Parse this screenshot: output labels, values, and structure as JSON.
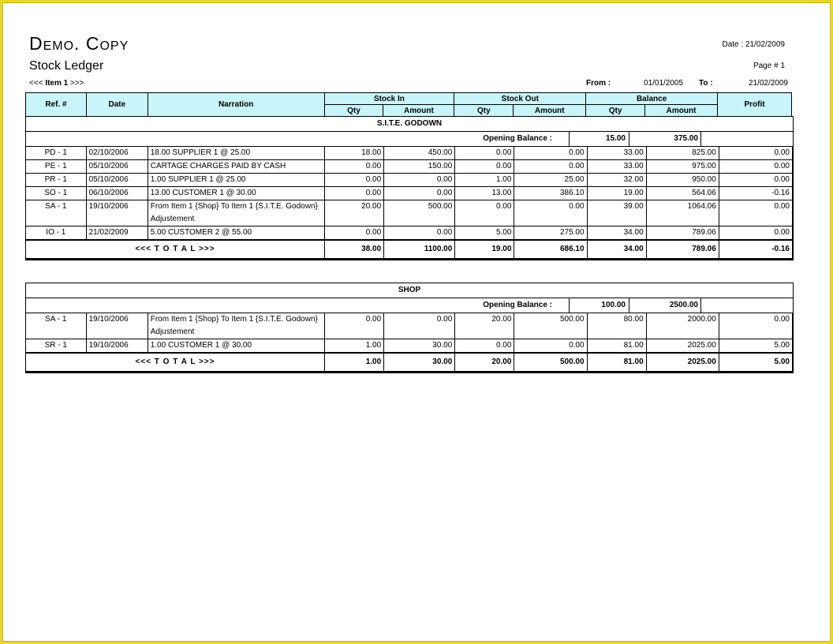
{
  "brand": "Demo. Copy",
  "title": "Stock Ledger",
  "item_label": "Item 1",
  "date_label": "Date :",
  "date_value": "21/02/2009",
  "page_label": "Page #",
  "page_value": "1",
  "from_label": "From :",
  "from_value": "01/01/2005",
  "to_label": "To :",
  "to_value": "21/02/2009",
  "headers": {
    "ref": "Ref. #",
    "date": "Date",
    "narration": "Narration",
    "stock_in": "Stock In",
    "stock_out": "Stock Out",
    "balance": "Balance",
    "profit": "Profit",
    "qty": "Qty",
    "amount": "Amount"
  },
  "opening_label": "Opening Balance :",
  "total_label": "<<< T O T A L >>>",
  "sections": [
    {
      "name": "S.I.T.E. GODOWN",
      "opening_qty": "15.00",
      "opening_amount": "375.00",
      "rows": [
        {
          "ref": "PD - 1",
          "date": "02/10/2006",
          "narration": "18.00 SUPPLIER 1 @ 25.00",
          "in_qty": "18.00",
          "in_amt": "450.00",
          "out_qty": "0.00",
          "out_amt": "0.00",
          "bal_qty": "33.00",
          "bal_amt": "825.00",
          "profit": "0.00"
        },
        {
          "ref": "PE - 1",
          "date": "05/10/2006",
          "narration": "CARTAGE CHARGES PAID BY CASH",
          "in_qty": "0.00",
          "in_amt": "150.00",
          "out_qty": "0.00",
          "out_amt": "0.00",
          "bal_qty": "33.00",
          "bal_amt": "975.00",
          "profit": "0.00"
        },
        {
          "ref": "PR - 1",
          "date": "05/10/2006",
          "narration": "1.00 SUPPLIER 1 @ 25.00",
          "in_qty": "0.00",
          "in_amt": "0.00",
          "out_qty": "1.00",
          "out_amt": "25.00",
          "bal_qty": "32.00",
          "bal_amt": "950.00",
          "profit": "0.00"
        },
        {
          "ref": "SO - 1",
          "date": "06/10/2006",
          "narration": "13.00 CUSTOMER 1 @ 30.00",
          "in_qty": "0.00",
          "in_amt": "0.00",
          "out_qty": "13.00",
          "out_amt": "386.10",
          "bal_qty": "19.00",
          "bal_amt": "564.06",
          "profit": "-0.16"
        },
        {
          "ref": "SA - 1",
          "date": "19/10/2006",
          "narration": "From Item 1 {Shop} To Item 1 {S.I.T.E. Godown} Adjustement",
          "in_qty": "20.00",
          "in_amt": "500.00",
          "out_qty": "0.00",
          "out_amt": "0.00",
          "bal_qty": "39.00",
          "bal_amt": "1064.06",
          "profit": "0.00"
        },
        {
          "ref": "IO - 1",
          "date": "21/02/2009",
          "narration": "5.00 CUSTOMER 2 @ 55.00",
          "in_qty": "0.00",
          "in_amt": "0.00",
          "out_qty": "5.00",
          "out_amt": "275.00",
          "bal_qty": "34.00",
          "bal_amt": "789.06",
          "profit": "0.00"
        }
      ],
      "total": {
        "in_qty": "38.00",
        "in_amt": "1100.00",
        "out_qty": "19.00",
        "out_amt": "686.10",
        "bal_qty": "34.00",
        "bal_amt": "789.06",
        "profit": "-0.16"
      }
    },
    {
      "name": "SHOP",
      "opening_qty": "100.00",
      "opening_amount": "2500.00",
      "rows": [
        {
          "ref": "SA - 1",
          "date": "19/10/2006",
          "narration": "From Item 1 {Shop} To Item 1 {S.I.T.E. Godown} Adjustement",
          "in_qty": "0.00",
          "in_amt": "0.00",
          "out_qty": "20.00",
          "out_amt": "500.00",
          "bal_qty": "80.00",
          "bal_amt": "2000.00",
          "profit": "0.00"
        },
        {
          "ref": "SR - 1",
          "date": "19/10/2006",
          "narration": "1.00 CUSTOMER 1 @ 30.00",
          "in_qty": "1.00",
          "in_amt": "30.00",
          "out_qty": "0.00",
          "out_amt": "0.00",
          "bal_qty": "81.00",
          "bal_amt": "2025.00",
          "profit": "5.00"
        }
      ],
      "total": {
        "in_qty": "1.00",
        "in_amt": "30.00",
        "out_qty": "20.00",
        "out_amt": "500.00",
        "bal_qty": "81.00",
        "bal_amt": "2025.00",
        "profit": "5.00"
      }
    }
  ]
}
